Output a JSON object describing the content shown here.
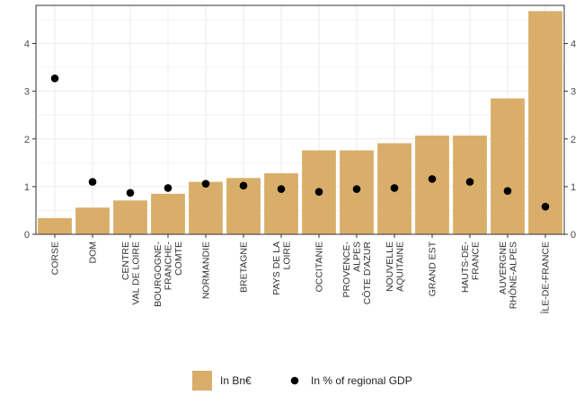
{
  "chart_data": {
    "type": "bar",
    "categories": [
      [
        "CORSE"
      ],
      [
        "DOM"
      ],
      [
        "CENTRE",
        "VAL DE LOIRE"
      ],
      [
        "BOURGOGNE-",
        "FRANCHE-",
        "COMTE"
      ],
      [
        "NORMANDIE"
      ],
      [
        "BRETAGNE"
      ],
      [
        "PAYS DE LA",
        "LOIRE"
      ],
      [
        "OCCITANIE"
      ],
      [
        "PROVENCE-",
        "ALPES",
        "CÔTE D'AZUR"
      ],
      [
        "NOUVELLE",
        "AQUITAINE"
      ],
      [
        "GRAND EST"
      ],
      [
        "HAUTS-DE-",
        "FRANCE"
      ],
      [
        "AUVERGNE",
        "RHÔNE-ALPES"
      ],
      [
        "ÎLE-DE-FRANCE"
      ]
    ],
    "series": [
      {
        "name": "In Bn€",
        "kind": "bar",
        "color": "#d8ae6a",
        "values": [
          0.34,
          0.56,
          0.71,
          0.85,
          1.1,
          1.18,
          1.28,
          1.76,
          1.76,
          1.91,
          2.07,
          2.07,
          2.85,
          4.68
        ]
      },
      {
        "name": "In % of regional GDP",
        "kind": "point",
        "color": "#000000",
        "values": [
          3.27,
          1.1,
          0.87,
          0.97,
          1.06,
          1.02,
          0.95,
          0.89,
          0.95,
          0.97,
          1.16,
          1.1,
          0.91,
          0.58
        ]
      }
    ],
    "ylim": [
      0,
      4.8
    ],
    "yticks": [
      "0",
      "1",
      "2",
      "3",
      "4"
    ],
    "y_axis_left": true,
    "y_axis_right": true,
    "grid": true,
    "legend_position": "bottom"
  }
}
